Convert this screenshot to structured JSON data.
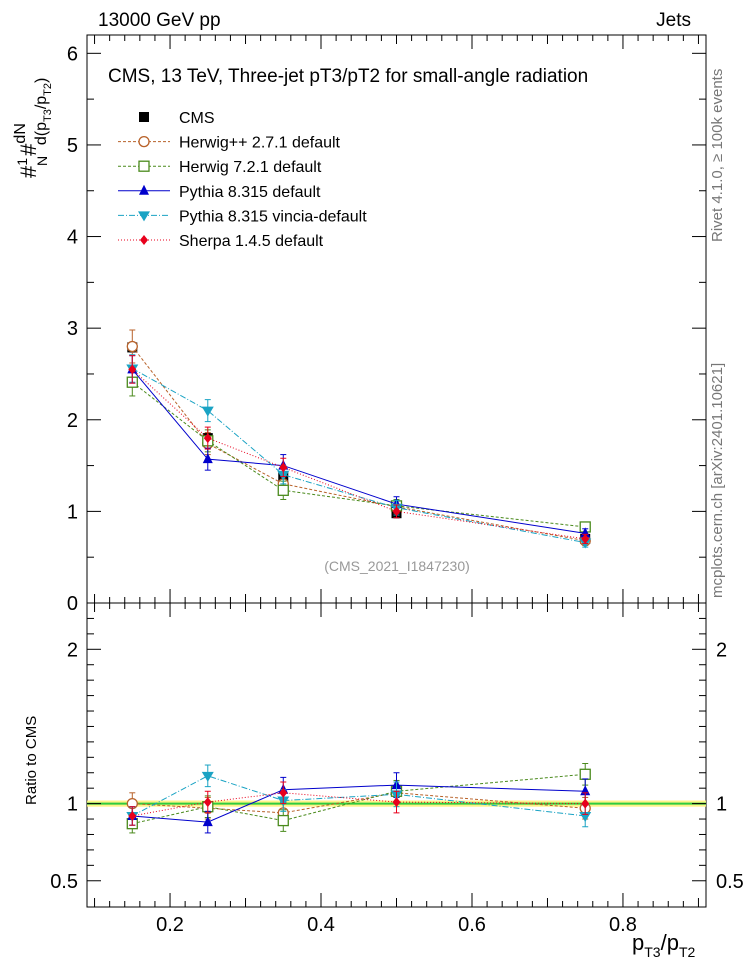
{
  "header": {
    "energy": "13000 GeV pp",
    "category": "Jets"
  },
  "side_labels": {
    "rivet": "Rivet 4.1.0, ≥ 100k events",
    "mcplots": "mcplots.cern.ch [arXiv:2401.10621]"
  },
  "chart_data": [
    {
      "type": "line",
      "panel": "main",
      "title": "CMS, 13 TeV, Three-jet pT3/pT2 for small-angle radiation",
      "watermark": "(CMS_2021_I1847230)",
      "ylabel": "1/N dN/d(pT3/pT2)",
      "xlim": [
        0.09,
        0.91
      ],
      "ylim": [
        0,
        6.2
      ],
      "yticks": [
        {
          "v": 1,
          "label": "1"
        },
        {
          "v": 2,
          "label": "2"
        },
        {
          "v": 3,
          "label": "3"
        },
        {
          "v": 4,
          "label": "4"
        },
        {
          "v": 5,
          "label": "5"
        },
        {
          "v": 6,
          "label": "6"
        }
      ],
      "x": [
        0.15,
        0.25,
        0.35,
        0.5,
        0.75
      ],
      "series": [
        {
          "name": "CMS",
          "color": "#000000",
          "marker": "square-filled",
          "dash": "none",
          "values": [
            2.79,
            1.8,
            1.38,
            0.98,
            0.7
          ],
          "errors": [
            0.05,
            0.05,
            0.05,
            0.05,
            0.04
          ]
        },
        {
          "name": "Herwig++ 2.7.1 default",
          "color": "#b8622a",
          "marker": "circle-open",
          "dash": "3,2",
          "values": [
            2.8,
            1.74,
            1.3,
            1.05,
            0.68
          ],
          "errors": [
            0.18,
            0.12,
            0.1,
            0.07,
            0.05
          ]
        },
        {
          "name": "Herwig 7.2.1 default",
          "color": "#4a8a1c",
          "marker": "square-open",
          "dash": "3,2",
          "values": [
            2.41,
            1.77,
            1.23,
            1.06,
            0.83
          ],
          "errors": [
            0.15,
            0.12,
            0.1,
            0.07,
            0.05
          ]
        },
        {
          "name": "Pythia 8.315 default",
          "color": "#0000cc",
          "marker": "triangle-up",
          "dash": "none",
          "values": [
            2.55,
            1.57,
            1.5,
            1.08,
            0.76
          ],
          "errors": [
            0.15,
            0.12,
            0.12,
            0.08,
            0.05
          ]
        },
        {
          "name": "Pythia 8.315 vincia-default",
          "color": "#1aa3c4",
          "marker": "triangle-down",
          "dash": "6,2,1,2",
          "values": [
            2.56,
            2.1,
            1.4,
            1.04,
            0.66
          ],
          "errors": [
            0.15,
            0.12,
            0.1,
            0.08,
            0.05
          ]
        },
        {
          "name": "Sherpa 1.4.5 default",
          "color": "#e8001c",
          "marker": "diamond",
          "dash": "1,2",
          "values": [
            2.55,
            1.8,
            1.48,
            1.0,
            0.7
          ],
          "errors": [
            0.15,
            0.12,
            0.1,
            0.07,
            0.05
          ]
        }
      ]
    },
    {
      "type": "line",
      "panel": "ratio",
      "ylabel": "Ratio to CMS",
      "xlabel": "pT3/pT2",
      "xlim": [
        0.09,
        0.91
      ],
      "ylim": [
        0.33,
        2.3
      ],
      "yticks": [
        {
          "v": 0.5,
          "label": "0.5"
        },
        {
          "v": 1,
          "label": "1"
        },
        {
          "v": 2,
          "label": "2"
        }
      ],
      "xticks": [
        {
          "v": 0.2,
          "label": "0.2"
        },
        {
          "v": 0.4,
          "label": "0.4"
        },
        {
          "v": 0.6,
          "label": "0.6"
        },
        {
          "v": 0.8,
          "label": "0.8"
        }
      ],
      "x": [
        0.15,
        0.25,
        0.35,
        0.5,
        0.75
      ],
      "series": [
        {
          "name": "CMS",
          "color": "#000000",
          "values": [
            1.0,
            1.0,
            1.0,
            1.0,
            1.0
          ],
          "errors": [
            0.02,
            0.03,
            0.03,
            0.04,
            0.04
          ]
        },
        {
          "name": "Herwig++ 2.7.1 default",
          "color": "#b8622a",
          "marker": "circle-open",
          "dash": "3,2",
          "values": [
            1.0,
            0.97,
            0.94,
            1.07,
            0.97
          ],
          "errors": [
            0.07,
            0.07,
            0.07,
            0.07,
            0.07
          ]
        },
        {
          "name": "Herwig 7.2.1 default",
          "color": "#4a8a1c",
          "marker": "square-open",
          "dash": "3,2",
          "values": [
            0.87,
            0.98,
            0.89,
            1.08,
            1.19
          ],
          "errors": [
            0.06,
            0.07,
            0.07,
            0.07,
            0.07
          ]
        },
        {
          "name": "Pythia 8.315 default",
          "color": "#0000cc",
          "marker": "triangle-up",
          "dash": "none",
          "values": [
            0.92,
            0.88,
            1.09,
            1.12,
            1.08
          ],
          "errors": [
            0.06,
            0.07,
            0.08,
            0.08,
            0.08
          ]
        },
        {
          "name": "Pythia 8.315 vincia-default",
          "color": "#1aa3c4",
          "marker": "triangle-down",
          "dash": "6,2,1,2",
          "values": [
            0.92,
            1.18,
            1.02,
            1.06,
            0.92
          ],
          "errors": [
            0.06,
            0.07,
            0.07,
            0.08,
            0.07
          ]
        },
        {
          "name": "Sherpa 1.4.5 default",
          "color": "#e8001c",
          "marker": "diamond",
          "dash": "1,2",
          "values": [
            0.92,
            1.01,
            1.07,
            1.01,
            1.0
          ],
          "errors": [
            0.06,
            0.07,
            0.07,
            0.07,
            0.07
          ]
        }
      ]
    }
  ]
}
